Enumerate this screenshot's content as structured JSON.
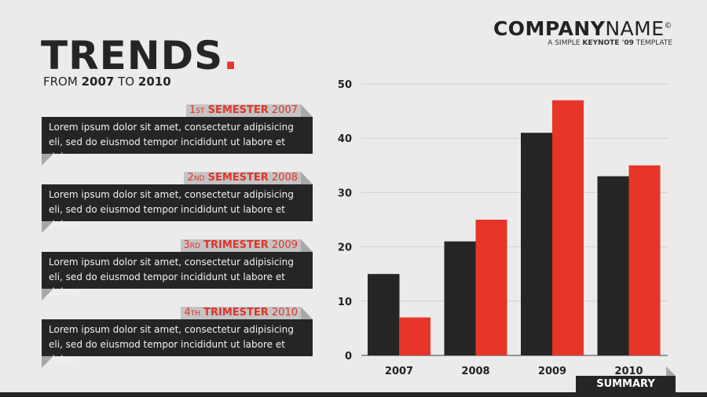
{
  "header": {
    "title": "TRENDS",
    "title_dot": ".",
    "subtitle_from": "FROM",
    "subtitle_start": "2007",
    "subtitle_to": "TO",
    "subtitle_end": "2010"
  },
  "brand": {
    "company_bold": "COMPANY",
    "company_light": "NAME",
    "copyright": "©",
    "tagline_pre": "A SIMPLE",
    "tagline_bold": "KEYNOTE '09",
    "tagline_post": "TEMPLATE"
  },
  "cards": [
    {
      "ordinal": "1",
      "suffix": "ST",
      "label": "SEMESTER",
      "year": "2007",
      "text": "Lorem ipsum dolor sit amet, consectetur adipisicing eli, sed do eiusmod tempor incididunt ut labore et dolore."
    },
    {
      "ordinal": "2",
      "suffix": "ND",
      "label": "SEMESTER",
      "year": "2008",
      "text": "Lorem ipsum dolor sit amet, consectetur adipisicing eli, sed do eiusmod tempor incididunt ut labore et dolore."
    },
    {
      "ordinal": "3",
      "suffix": "RD",
      "label": "TRIMESTER",
      "year": "2009",
      "text": "Lorem ipsum dolor sit amet, consectetur adipisicing eli, sed do eiusmod tempor incididunt ut labore et dolore."
    },
    {
      "ordinal": "4",
      "suffix": "TH",
      "label": "TRIMESTER",
      "year": "2010",
      "text": "Lorem ipsum dolor sit amet, consectetur adipisicing eli, sed do eiusmod tempor incididunt ut labore et dolore."
    }
  ],
  "summary_label": "SUMMARY",
  "colors": {
    "dark": "#252525",
    "accent": "#e8352a"
  },
  "chart_data": {
    "type": "bar",
    "title": "",
    "categories": [
      "2007",
      "2008",
      "2009",
      "2010"
    ],
    "series": [
      {
        "name": "series-dark",
        "color": "#252525",
        "values": [
          15,
          21,
          41,
          33
        ]
      },
      {
        "name": "series-red",
        "color": "#e8352a",
        "values": [
          7,
          25,
          47,
          35
        ]
      }
    ],
    "yticks": [
      "0",
      "10",
      "20",
      "30",
      "40",
      "50"
    ],
    "ylim": [
      0,
      50
    ],
    "grid": true,
    "xlabel": "",
    "ylabel": ""
  }
}
